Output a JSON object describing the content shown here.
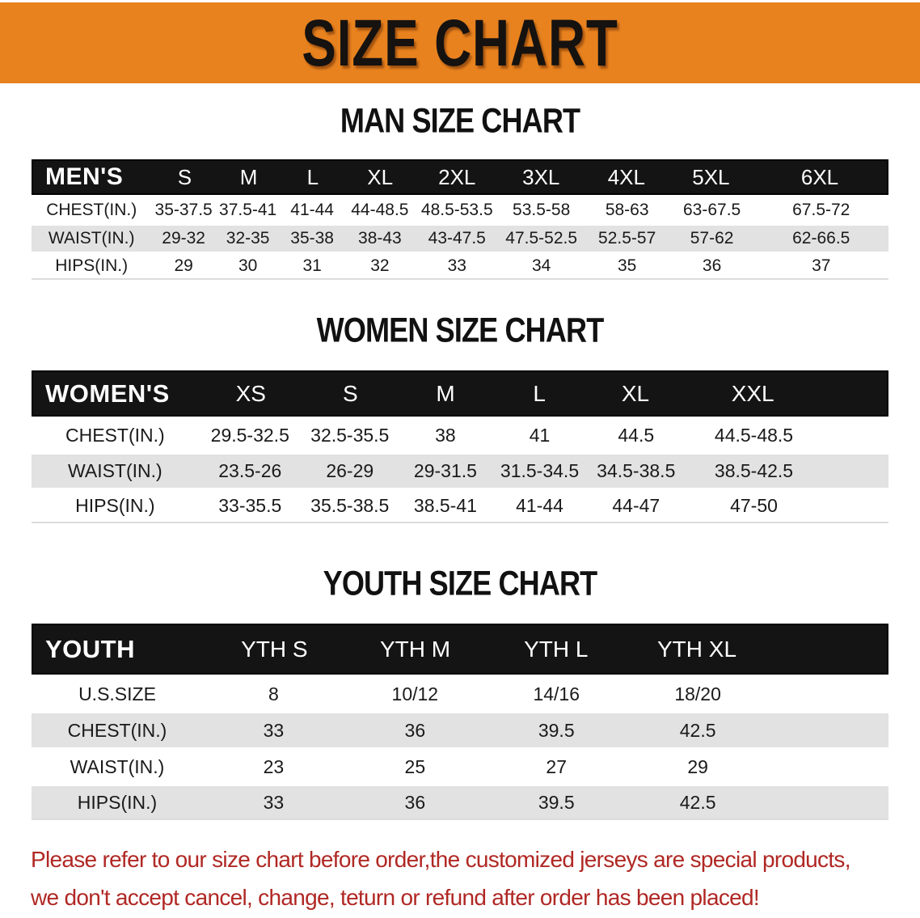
{
  "banner": {
    "title": "SIZE CHART"
  },
  "colors": {
    "banner_orange": "#E8821E",
    "header_black": "#141414",
    "stripe_gray": "#E2E2E2",
    "disclaimer_red": "#B02824"
  },
  "sections": [
    {
      "heading": "MAN SIZE CHART",
      "table": {
        "header_label": "MEN'S",
        "columns": [
          "S",
          "M",
          "L",
          "XL",
          "2XL",
          "3XL",
          "4XL",
          "5XL",
          "6XL"
        ],
        "rows": [
          {
            "label": "CHEST(IN.)",
            "values": [
              "35-37.5",
              "37.5-41",
              "41-44",
              "44-48.5",
              "48.5-53.5",
              "53.5-58",
              "58-63",
              "63-67.5",
              "67.5-72"
            ]
          },
          {
            "label": "WAIST(IN.)",
            "values": [
              "29-32",
              "32-35",
              "35-38",
              "38-43",
              "43-47.5",
              "47.5-52.5",
              "52.5-57",
              "57-62",
              "62-66.5"
            ]
          },
          {
            "label": "HIPS(IN.)",
            "values": [
              "29",
              "30",
              "31",
              "32",
              "33",
              "34",
              "35",
              "36",
              "37"
            ]
          }
        ]
      }
    },
    {
      "heading": "WOMEN SIZE CHART",
      "table": {
        "header_label": "WOMEN'S",
        "columns": [
          "XS",
          "S",
          "M",
          "L",
          "XL",
          "XXL"
        ],
        "rows": [
          {
            "label": "CHEST(IN.)",
            "values": [
              "29.5-32.5",
              "32.5-35.5",
              "38",
              "41",
              "44.5",
              "44.5-48.5"
            ]
          },
          {
            "label": "WAIST(IN.)",
            "values": [
              "23.5-26",
              "26-29",
              "29-31.5",
              "31.5-34.5",
              "34.5-38.5",
              "38.5-42.5"
            ]
          },
          {
            "label": "HIPS(IN.)",
            "values": [
              "33-35.5",
              "35.5-38.5",
              "38.5-41",
              "41-44",
              "44-47",
              "47-50"
            ]
          }
        ]
      }
    },
    {
      "heading": "YOUTH SIZE CHART",
      "table": {
        "header_label": "YOUTH",
        "columns": [
          "YTH S",
          "YTH M",
          "YTH L",
          "YTH XL"
        ],
        "rows": [
          {
            "label": "U.S.SIZE",
            "values": [
              "8",
              "10/12",
              "14/16",
              "18/20"
            ]
          },
          {
            "label": "CHEST(IN.)",
            "values": [
              "33",
              "36",
              "39.5",
              "42.5"
            ]
          },
          {
            "label": "WAIST(IN.)",
            "values": [
              "23",
              "25",
              "27",
              "29"
            ]
          },
          {
            "label": "HIPS(IN.)",
            "values": [
              "33",
              "36",
              "39.5",
              "42.5"
            ]
          }
        ]
      }
    }
  ],
  "disclaimer": {
    "line1": "Please refer to our size chart before order,the customized jerseys are special products,",
    "line2": "we don't accept cancel, change, teturn or refund after order has been placed!"
  }
}
